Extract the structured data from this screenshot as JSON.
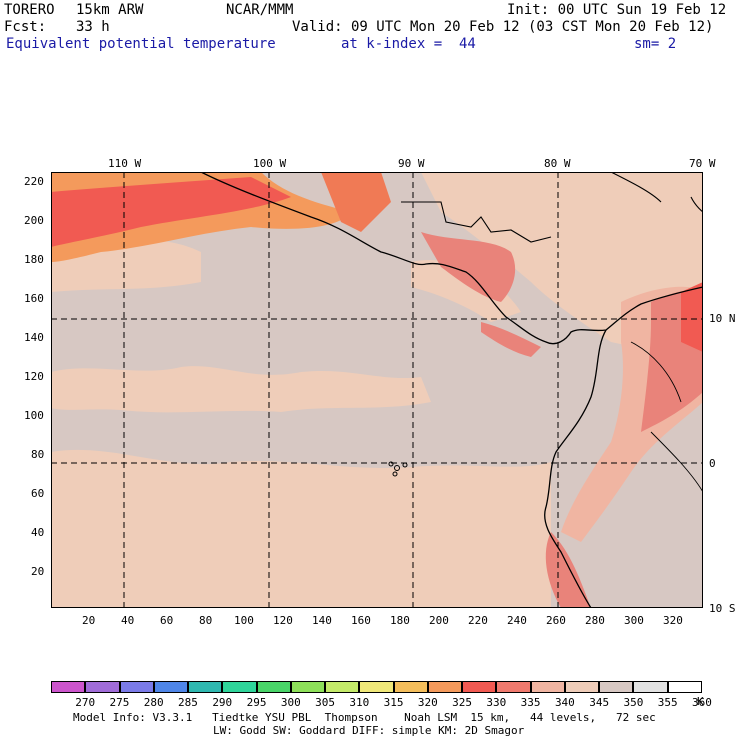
{
  "header": {
    "run_name": "TORERO",
    "model": "15km ARW",
    "center": "NCAR/MMM",
    "init": "Init: 00 UTC Sun 19 Feb 12",
    "fcst_label": "Fcst:",
    "fcst_value": "33 h",
    "valid": "Valid: 09 UTC Mon 20 Feb 12 (03 CST Mon 20 Feb 12)",
    "field": "Equivalent potential temperature",
    "level": "at k-index =  44",
    "smoothing": "sm= 2"
  },
  "map": {
    "top_lon_labels": [
      "110 W",
      "100 W",
      "90 W",
      "80 W",
      "70 W"
    ],
    "right_lat_labels": [
      "10 N",
      "0",
      "10 S"
    ],
    "left_axis_labels": [
      "220",
      "200",
      "180",
      "160",
      "140",
      "120",
      "100",
      "80",
      "60",
      "40",
      "20"
    ],
    "bottom_axis_labels": [
      "20",
      "40",
      "60",
      "80",
      "100",
      "120",
      "140",
      "160",
      "180",
      "200",
      "220",
      "240",
      "260",
      "280",
      "300",
      "320"
    ],
    "colors": {
      "land_line": "#000000",
      "c335": "#e9837a",
      "c340": "#f0b5a2",
      "c345": "#efcdb9",
      "c350": "#d7c8c3",
      "c330": "#f15a52",
      "c325": "#f07a55",
      "c320": "#f49a5c"
    }
  },
  "colorbar": {
    "labels": [
      "270",
      "275",
      "280",
      "285",
      "290",
      "295",
      "300",
      "305",
      "310",
      "315",
      "320",
      "325",
      "330",
      "335",
      "340",
      "345",
      "350",
      "355",
      "360"
    ],
    "unit": "K",
    "colors": [
      "#cc55cc",
      "#a06cd8",
      "#7b7be8",
      "#4f86e8",
      "#2fb8b0",
      "#2fd49a",
      "#49d468",
      "#8ee05a",
      "#c4ea6a",
      "#f0e87a",
      "#f4be5c",
      "#f49a5c",
      "#f15a52",
      "#f07a6e",
      "#f0b5a2",
      "#efcdb9",
      "#d7c8c3",
      "#e2e2e2",
      "#ffffff"
    ]
  },
  "footer": {
    "line1": "Model Info: V3.3.1   Tiedtke YSU PBL  Thompson    Noah LSM  15 km,   44 levels,   72 sec",
    "line2": "LW: Godd SW: Goddard DIFF: simple KM: 2D Smagor"
  }
}
